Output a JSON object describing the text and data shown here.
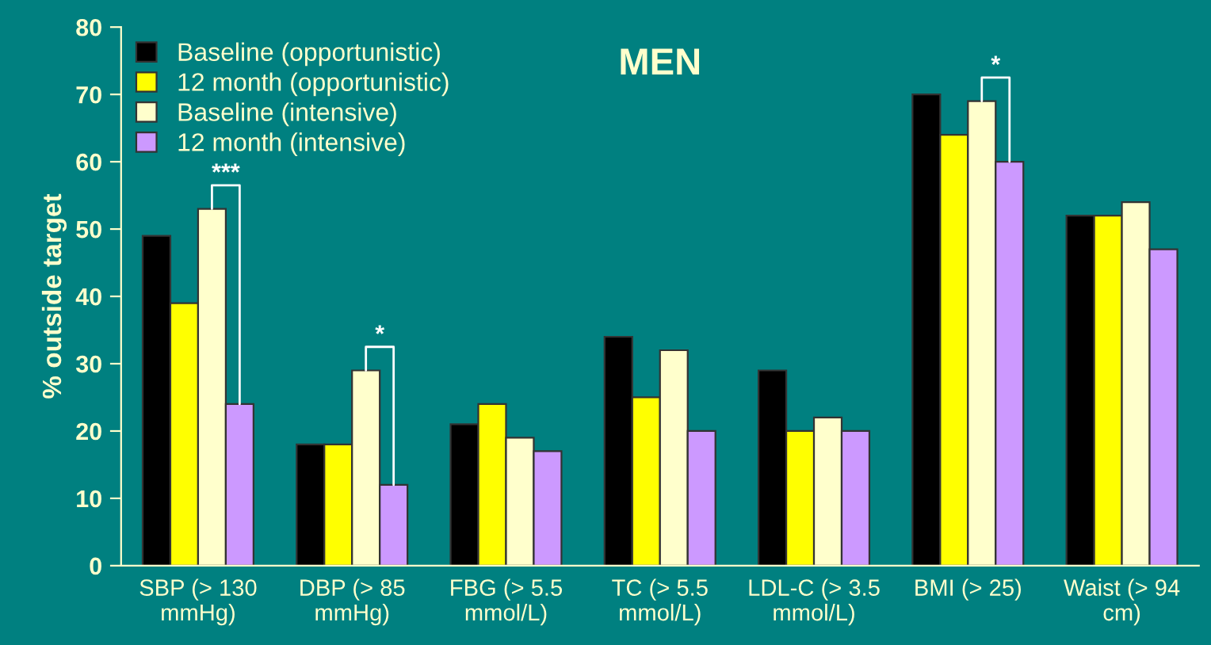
{
  "chart_data": {
    "type": "bar",
    "title": "MEN",
    "ylabel": "% outside target",
    "categories": [
      "SBP (> 130\nmmHg)",
      "DBP (> 85\nmmHg)",
      "FBG (> 5.5\nmmol/L)",
      "TC (> 5.5\nmmol/L)",
      "LDL-C (> 3.5\nmmol/L)",
      "BMI (> 25)",
      "Waist (> 94\ncm)"
    ],
    "series": [
      {
        "name": "Baseline (opportunistic)",
        "color": "#000000",
        "values": [
          49,
          18,
          21,
          34,
          29,
          70,
          52
        ]
      },
      {
        "name": "12 month (opportunistic)",
        "color": "#ffff00",
        "values": [
          39,
          18,
          24,
          25,
          20,
          64,
          52
        ]
      },
      {
        "name": "Baseline (intensive)",
        "color": "#ffffcc",
        "values": [
          53,
          29,
          19,
          32,
          22,
          69,
          54
        ]
      },
      {
        "name": "12 month (intensive)",
        "color": "#cc99ff",
        "values": [
          24,
          12,
          17,
          20,
          20,
          60,
          47
        ]
      }
    ],
    "annotations": [
      "***",
      "*",
      "*"
    ],
    "ylim": [
      0,
      80
    ],
    "yticks": [
      0,
      10,
      20,
      30,
      40,
      50,
      60,
      70,
      80
    ],
    "grid": false,
    "legend": "top left"
  }
}
